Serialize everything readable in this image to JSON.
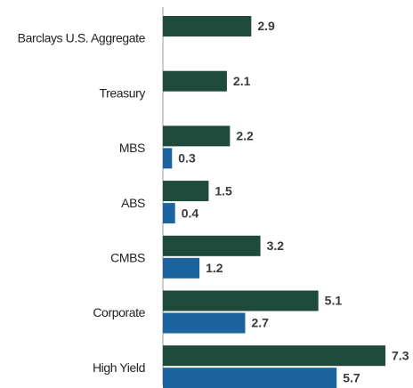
{
  "chart_data": {
    "type": "bar",
    "orientation": "horizontal",
    "categories": [
      "Barclays U.S. Aggregate",
      "Treasury",
      "MBS",
      "ABS",
      "CMBS",
      "Corporate",
      "High Yield"
    ],
    "series": [
      {
        "color": "#1e4a3b",
        "values": [
          2.9,
          2.1,
          2.2,
          1.5,
          3.2,
          5.1,
          7.3
        ]
      },
      {
        "color": "#1b64a0",
        "values": [
          null,
          null,
          0.3,
          0.4,
          1.2,
          2.7,
          5.7
        ]
      }
    ],
    "xlim": [
      0,
      8
    ],
    "data_labels": true
  }
}
